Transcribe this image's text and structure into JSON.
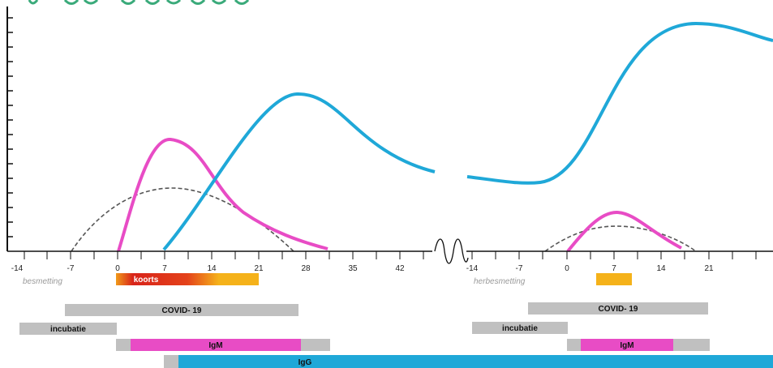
{
  "colors": {
    "pink": "#e84cc5",
    "blue": "#1fa8d8",
    "grey_bar": "#c0c0c0",
    "orange": "#f5b21a",
    "red": "#d8231a",
    "dashed": "#555555"
  },
  "axis": {
    "segment1_ticks": [
      "-14",
      "-7",
      "0",
      "7",
      "14",
      "21",
      "28",
      "35",
      "42"
    ],
    "segment2_ticks": [
      "-14",
      "-7",
      "0",
      "7",
      "14",
      "21"
    ]
  },
  "events": {
    "infection": "besmetting",
    "reinfection": "herbesmetting",
    "fever": "koorts"
  },
  "bars": {
    "covid1": "COVID- 19",
    "incubation1": "incubatie",
    "igm1": "IgM",
    "igg": "IgG",
    "covid2": "COVID- 19",
    "incubation2": "incubatie",
    "igm2": "IgM"
  }
}
